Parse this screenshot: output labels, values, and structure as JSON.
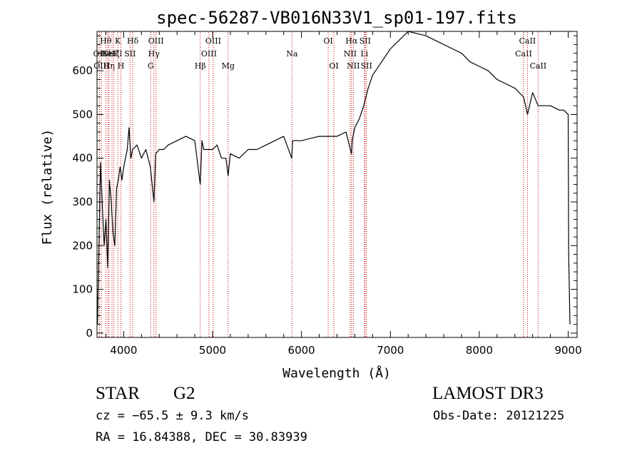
{
  "chart_data": {
    "type": "line",
    "title": "spec-56287-VB016N33V1_sp01-197.fits",
    "xlabel": "Wavelength (Å)",
    "ylabel": "Flux (relative)",
    "xlim": [
      3700,
      9100
    ],
    "ylim": [
      -10,
      690
    ],
    "xticks": [
      4000,
      5000,
      6000,
      7000,
      8000,
      9000
    ],
    "yticks": [
      0,
      100,
      200,
      300,
      400,
      500,
      600
    ],
    "series": [
      {
        "name": "flux",
        "x": [
          3705,
          3720,
          3740,
          3760,
          3780,
          3800,
          3820,
          3840,
          3860,
          3880,
          3900,
          3920,
          3940,
          3960,
          3980,
          4000,
          4020,
          4040,
          4060,
          4080,
          4100,
          4150,
          4200,
          4250,
          4300,
          4340,
          4360,
          4400,
          4450,
          4500,
          4600,
          4700,
          4800,
          4861,
          4880,
          4900,
          4950,
          5000,
          5050,
          5100,
          5150,
          5175,
          5200,
          5300,
          5400,
          5500,
          5600,
          5700,
          5800,
          5890,
          5900,
          6000,
          6100,
          6200,
          6300,
          6400,
          6500,
          6563,
          6570,
          6600,
          6650,
          6700,
          6750,
          6800,
          6900,
          7000,
          7100,
          7200,
          7300,
          7400,
          7500,
          7600,
          7700,
          7800,
          7900,
          8000,
          8100,
          8200,
          8300,
          8400,
          8498,
          8542,
          8600,
          8662,
          8700,
          8800,
          8900,
          8950,
          9000,
          9005,
          9020
        ],
        "values": [
          20,
          180,
          390,
          290,
          200,
          260,
          150,
          350,
          300,
          230,
          200,
          330,
          350,
          380,
          350,
          380,
          400,
          420,
          470,
          400,
          420,
          430,
          400,
          420,
          380,
          300,
          410,
          420,
          420,
          430,
          440,
          450,
          440,
          340,
          440,
          420,
          420,
          420,
          430,
          400,
          400,
          360,
          410,
          400,
          420,
          420,
          430,
          440,
          450,
          400,
          440,
          440,
          445,
          450,
          450,
          450,
          460,
          410,
          440,
          470,
          490,
          520,
          560,
          590,
          620,
          650,
          670,
          690,
          685,
          680,
          670,
          660,
          650,
          640,
          620,
          610,
          600,
          580,
          570,
          560,
          540,
          500,
          550,
          520,
          520,
          520,
          510,
          510,
          500,
          180,
          20
        ]
      }
    ],
    "lines": [
      {
        "w": 3727,
        "label": "OII",
        "row": 1
      },
      {
        "w": 3750,
        "label": "OIII",
        "row": 2
      },
      {
        "w": 3798,
        "label": "Hθ",
        "row": 0
      },
      {
        "w": 3820,
        "label": "HeI",
        "row": 1
      },
      {
        "w": 3835,
        "label": "Hη",
        "row": 2
      },
      {
        "w": 3869,
        "label": "NeIII",
        "row": 1
      },
      {
        "w": 3889,
        "label": "Hζ",
        "row": 1
      },
      {
        "w": 3934,
        "label": "K",
        "row": 0
      },
      {
        "w": 3969,
        "label": "H",
        "row": 2
      },
      {
        "w": 4072,
        "label": "SII",
        "row": 1
      },
      {
        "w": 4102,
        "label": "Hδ",
        "row": 0
      },
      {
        "w": 4304,
        "label": "G",
        "row": 2
      },
      {
        "w": 4340,
        "label": "Hγ",
        "row": 1
      },
      {
        "w": 4363,
        "label": "OIII",
        "row": 0
      },
      {
        "w": 4861,
        "label": "Hβ",
        "row": 2
      },
      {
        "w": 4959,
        "label": "OIII",
        "row": 1
      },
      {
        "w": 5007,
        "label": "OIII",
        "row": 0
      },
      {
        "w": 5175,
        "label": "Mg",
        "row": 2
      },
      {
        "w": 5893,
        "label": "Na",
        "row": 1
      },
      {
        "w": 6300,
        "label": "OI",
        "row": 0
      },
      {
        "w": 6364,
        "label": "OI",
        "row": 2
      },
      {
        "w": 6548,
        "label": "NII",
        "row": 1
      },
      {
        "w": 6563,
        "label": "Hα",
        "row": 0
      },
      {
        "w": 6583,
        "label": "NII",
        "row": 2
      },
      {
        "w": 6707,
        "label": "Li",
        "row": 1
      },
      {
        "w": 6716,
        "label": "SII",
        "row": 0
      },
      {
        "w": 6731,
        "label": "SII",
        "row": 2
      },
      {
        "w": 8498,
        "label": "CaII",
        "row": 1
      },
      {
        "w": 8542,
        "label": "CaII",
        "row": 0
      },
      {
        "w": 8662,
        "label": "CaII",
        "row": 2
      }
    ]
  },
  "info": {
    "object_class": "STAR",
    "subclass": "G2",
    "survey": "LAMOST DR3",
    "redshift_line": "cz = −65.5 ± 9.3 km/s",
    "obs_date_line": "Obs-Date: 20121225",
    "coords_line": "RA =  16.84388, DEC =  30.83939"
  },
  "colors": {
    "spectrum": "#000000",
    "line_marker": "#cc0000",
    "axes": "#000000",
    "background": "#ffffff"
  }
}
